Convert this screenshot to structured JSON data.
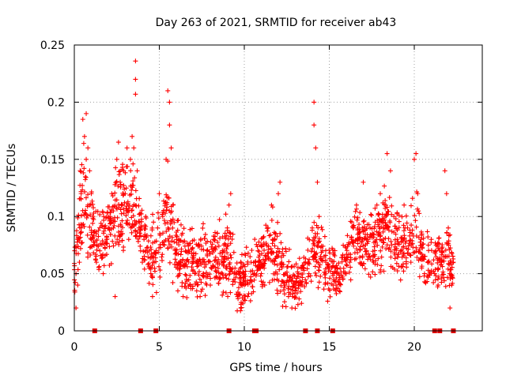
{
  "chart_data": {
    "type": "scatter",
    "title": "Day 263 of 2021, SRMTID for receiver ab43",
    "xlabel": "GPS time / hours",
    "ylabel": "SRMTID / TECUs",
    "xlim": [
      0,
      24
    ],
    "ylim": [
      0,
      0.25
    ],
    "x_ticks": [
      0,
      5,
      10,
      15,
      20
    ],
    "x_tick_labels": [
      "0",
      "5",
      "10",
      "15",
      "20"
    ],
    "y_ticks": [
      0,
      0.05,
      0.1,
      0.15,
      0.2,
      0.25
    ],
    "y_tick_labels": [
      "0",
      "0.05",
      "0.1",
      "0.15",
      "0.2",
      "0.25"
    ],
    "grid": true,
    "marker": "plus",
    "color": "#ff0000",
    "zero_marks_x": [
      1.2,
      3.9,
      4.8,
      9.1,
      10.6,
      10.7,
      13.6,
      14.3,
      15.2,
      21.2,
      21.5,
      22.3
    ],
    "series": [
      {
        "name": "SRMTID",
        "description": "dense scatter of roughly 2000 samples; representative points listed, remaining density generated from envelope",
        "points": [
          [
            0.1,
            0.02
          ],
          [
            0.1,
            0.05
          ],
          [
            0.2,
            0.04
          ],
          [
            0.2,
            0.08
          ],
          [
            0.3,
            0.06
          ],
          [
            0.4,
            0.09
          ],
          [
            0.4,
            0.12
          ],
          [
            0.5,
            0.185
          ],
          [
            0.6,
            0.17
          ],
          [
            0.7,
            0.19
          ],
          [
            0.7,
            0.15
          ],
          [
            0.8,
            0.16
          ],
          [
            0.8,
            0.11
          ],
          [
            0.9,
            0.14
          ],
          [
            1.0,
            0.12
          ],
          [
            1.0,
            0.08
          ],
          [
            1.1,
            0.1
          ],
          [
            1.3,
            0.06
          ],
          [
            1.5,
            0.07
          ],
          [
            1.7,
            0.05
          ],
          [
            1.9,
            0.08
          ],
          [
            2.1,
            0.1
          ],
          [
            2.2,
            0.12
          ],
          [
            2.3,
            0.09
          ],
          [
            2.4,
            0.03
          ],
          [
            2.5,
            0.15
          ],
          [
            2.6,
            0.165
          ],
          [
            2.7,
            0.13
          ],
          [
            2.8,
            0.11
          ],
          [
            2.9,
            0.14
          ],
          [
            3.0,
            0.12
          ],
          [
            3.1,
            0.16
          ],
          [
            3.2,
            0.08
          ],
          [
            3.3,
            0.15
          ],
          [
            3.4,
            0.17
          ],
          [
            3.5,
            0.16
          ],
          [
            3.6,
            0.236
          ],
          [
            3.6,
            0.22
          ],
          [
            3.6,
            0.207
          ],
          [
            3.7,
            0.14
          ],
          [
            3.8,
            0.09
          ],
          [
            3.9,
            0.07
          ],
          [
            4.0,
            0.06
          ],
          [
            4.1,
            0.08
          ],
          [
            4.2,
            0.1
          ],
          [
            4.4,
            0.07
          ],
          [
            4.5,
            0.05
          ],
          [
            4.6,
            0.03
          ],
          [
            4.7,
            0.06
          ],
          [
            4.9,
            0.09
          ],
          [
            5.0,
            0.12
          ],
          [
            5.2,
            0.1
          ],
          [
            5.4,
            0.15
          ],
          [
            5.5,
            0.21
          ],
          [
            5.6,
            0.2
          ],
          [
            5.6,
            0.18
          ],
          [
            5.7,
            0.16
          ],
          [
            5.8,
            0.11
          ],
          [
            6.0,
            0.06
          ],
          [
            6.2,
            0.05
          ],
          [
            6.4,
            0.03
          ],
          [
            6.6,
            0.045
          ],
          [
            6.8,
            0.04
          ],
          [
            7.0,
            0.06
          ],
          [
            7.2,
            0.035
          ],
          [
            7.4,
            0.03
          ],
          [
            7.6,
            0.05
          ],
          [
            7.8,
            0.07
          ],
          [
            8.0,
            0.04
          ],
          [
            8.2,
            0.08
          ],
          [
            8.4,
            0.06
          ],
          [
            8.6,
            0.05
          ],
          [
            8.8,
            0.07
          ],
          [
            9.0,
            0.09
          ],
          [
            9.1,
            0.11
          ],
          [
            9.2,
            0.12
          ],
          [
            9.4,
            0.05
          ],
          [
            9.6,
            0.03
          ],
          [
            9.8,
            0.02
          ],
          [
            10.0,
            0.04
          ],
          [
            10.2,
            0.03
          ],
          [
            10.4,
            0.06
          ],
          [
            10.6,
            0.05
          ],
          [
            10.8,
            0.07
          ],
          [
            11.0,
            0.05
          ],
          [
            11.2,
            0.04
          ],
          [
            11.4,
            0.09
          ],
          [
            11.6,
            0.11
          ],
          [
            11.8,
            0.08
          ],
          [
            12.0,
            0.12
          ],
          [
            12.1,
            0.13
          ],
          [
            12.2,
            0.06
          ],
          [
            12.4,
            0.04
          ],
          [
            12.6,
            0.03
          ],
          [
            12.8,
            0.02
          ],
          [
            13.0,
            0.035
          ],
          [
            13.2,
            0.05
          ],
          [
            13.4,
            0.04
          ],
          [
            13.6,
            0.06
          ],
          [
            13.8,
            0.05
          ],
          [
            14.0,
            0.09
          ],
          [
            14.1,
            0.2
          ],
          [
            14.1,
            0.18
          ],
          [
            14.2,
            0.16
          ],
          [
            14.3,
            0.13
          ],
          [
            14.4,
            0.1
          ],
          [
            14.6,
            0.07
          ],
          [
            14.8,
            0.06
          ],
          [
            15.0,
            0.055
          ],
          [
            15.2,
            0.05
          ],
          [
            15.4,
            0.04
          ],
          [
            15.6,
            0.035
          ],
          [
            15.8,
            0.045
          ],
          [
            16.0,
            0.05
          ],
          [
            16.2,
            0.06
          ],
          [
            16.4,
            0.09
          ],
          [
            16.6,
            0.11
          ],
          [
            16.8,
            0.08
          ],
          [
            17.0,
            0.13
          ],
          [
            17.2,
            0.07
          ],
          [
            17.4,
            0.09
          ],
          [
            17.6,
            0.06
          ],
          [
            17.8,
            0.11
          ],
          [
            18.0,
            0.12
          ],
          [
            18.2,
            0.09
          ],
          [
            18.4,
            0.155
          ],
          [
            18.6,
            0.14
          ],
          [
            18.8,
            0.1
          ],
          [
            19.0,
            0.08
          ],
          [
            19.2,
            0.07
          ],
          [
            19.4,
            0.11
          ],
          [
            19.6,
            0.09
          ],
          [
            19.8,
            0.06
          ],
          [
            20.0,
            0.15
          ],
          [
            20.1,
            0.155
          ],
          [
            20.2,
            0.12
          ],
          [
            20.4,
            0.08
          ],
          [
            20.6,
            0.05
          ],
          [
            20.8,
            0.06
          ],
          [
            21.0,
            0.08
          ],
          [
            21.2,
            0.05
          ],
          [
            21.4,
            0.04
          ],
          [
            21.6,
            0.06
          ],
          [
            21.8,
            0.14
          ],
          [
            21.9,
            0.12
          ],
          [
            22.0,
            0.09
          ],
          [
            22.1,
            0.02
          ],
          [
            22.2,
            0.04
          ],
          [
            22.3,
            0.06
          ]
        ],
        "envelope": [
          [
            0.0,
            0.02,
            0.09
          ],
          [
            0.5,
            0.05,
            0.19
          ],
          [
            1.0,
            0.04,
            0.14
          ],
          [
            1.5,
            0.04,
            0.11
          ],
          [
            2.0,
            0.04,
            0.13
          ],
          [
            2.5,
            0.04,
            0.16
          ],
          [
            3.0,
            0.04,
            0.17
          ],
          [
            3.5,
            0.05,
            0.17
          ],
          [
            4.0,
            0.05,
            0.12
          ],
          [
            4.5,
            0.02,
            0.11
          ],
          [
            5.0,
            0.03,
            0.12
          ],
          [
            5.5,
            0.05,
            0.16
          ],
          [
            6.0,
            0.02,
            0.12
          ],
          [
            6.5,
            0.02,
            0.1
          ],
          [
            7.0,
            0.02,
            0.11
          ],
          [
            7.5,
            0.02,
            0.1
          ],
          [
            8.0,
            0.02,
            0.11
          ],
          [
            8.5,
            0.02,
            0.1
          ],
          [
            9.0,
            0.02,
            0.12
          ],
          [
            9.5,
            0.01,
            0.08
          ],
          [
            10.0,
            0.01,
            0.08
          ],
          [
            10.5,
            0.02,
            0.09
          ],
          [
            11.0,
            0.02,
            0.1
          ],
          [
            11.5,
            0.02,
            0.12
          ],
          [
            12.0,
            0.01,
            0.12
          ],
          [
            12.5,
            0.01,
            0.08
          ],
          [
            13.0,
            0.01,
            0.07
          ],
          [
            13.5,
            0.02,
            0.08
          ],
          [
            14.0,
            0.03,
            0.11
          ],
          [
            14.5,
            0.03,
            0.11
          ],
          [
            15.0,
            0.02,
            0.09
          ],
          [
            15.5,
            0.02,
            0.08
          ],
          [
            16.0,
            0.03,
            0.1
          ],
          [
            16.5,
            0.04,
            0.13
          ],
          [
            17.0,
            0.03,
            0.12
          ],
          [
            17.5,
            0.04,
            0.12
          ],
          [
            18.0,
            0.04,
            0.13
          ],
          [
            18.5,
            0.04,
            0.14
          ],
          [
            19.0,
            0.03,
            0.12
          ],
          [
            19.5,
            0.03,
            0.11
          ],
          [
            20.0,
            0.04,
            0.14
          ],
          [
            20.5,
            0.03,
            0.1
          ],
          [
            21.0,
            0.03,
            0.09
          ],
          [
            21.5,
            0.03,
            0.1
          ],
          [
            22.0,
            0.02,
            0.11
          ],
          [
            22.3,
            0.03,
            0.07
          ]
        ]
      }
    ]
  }
}
